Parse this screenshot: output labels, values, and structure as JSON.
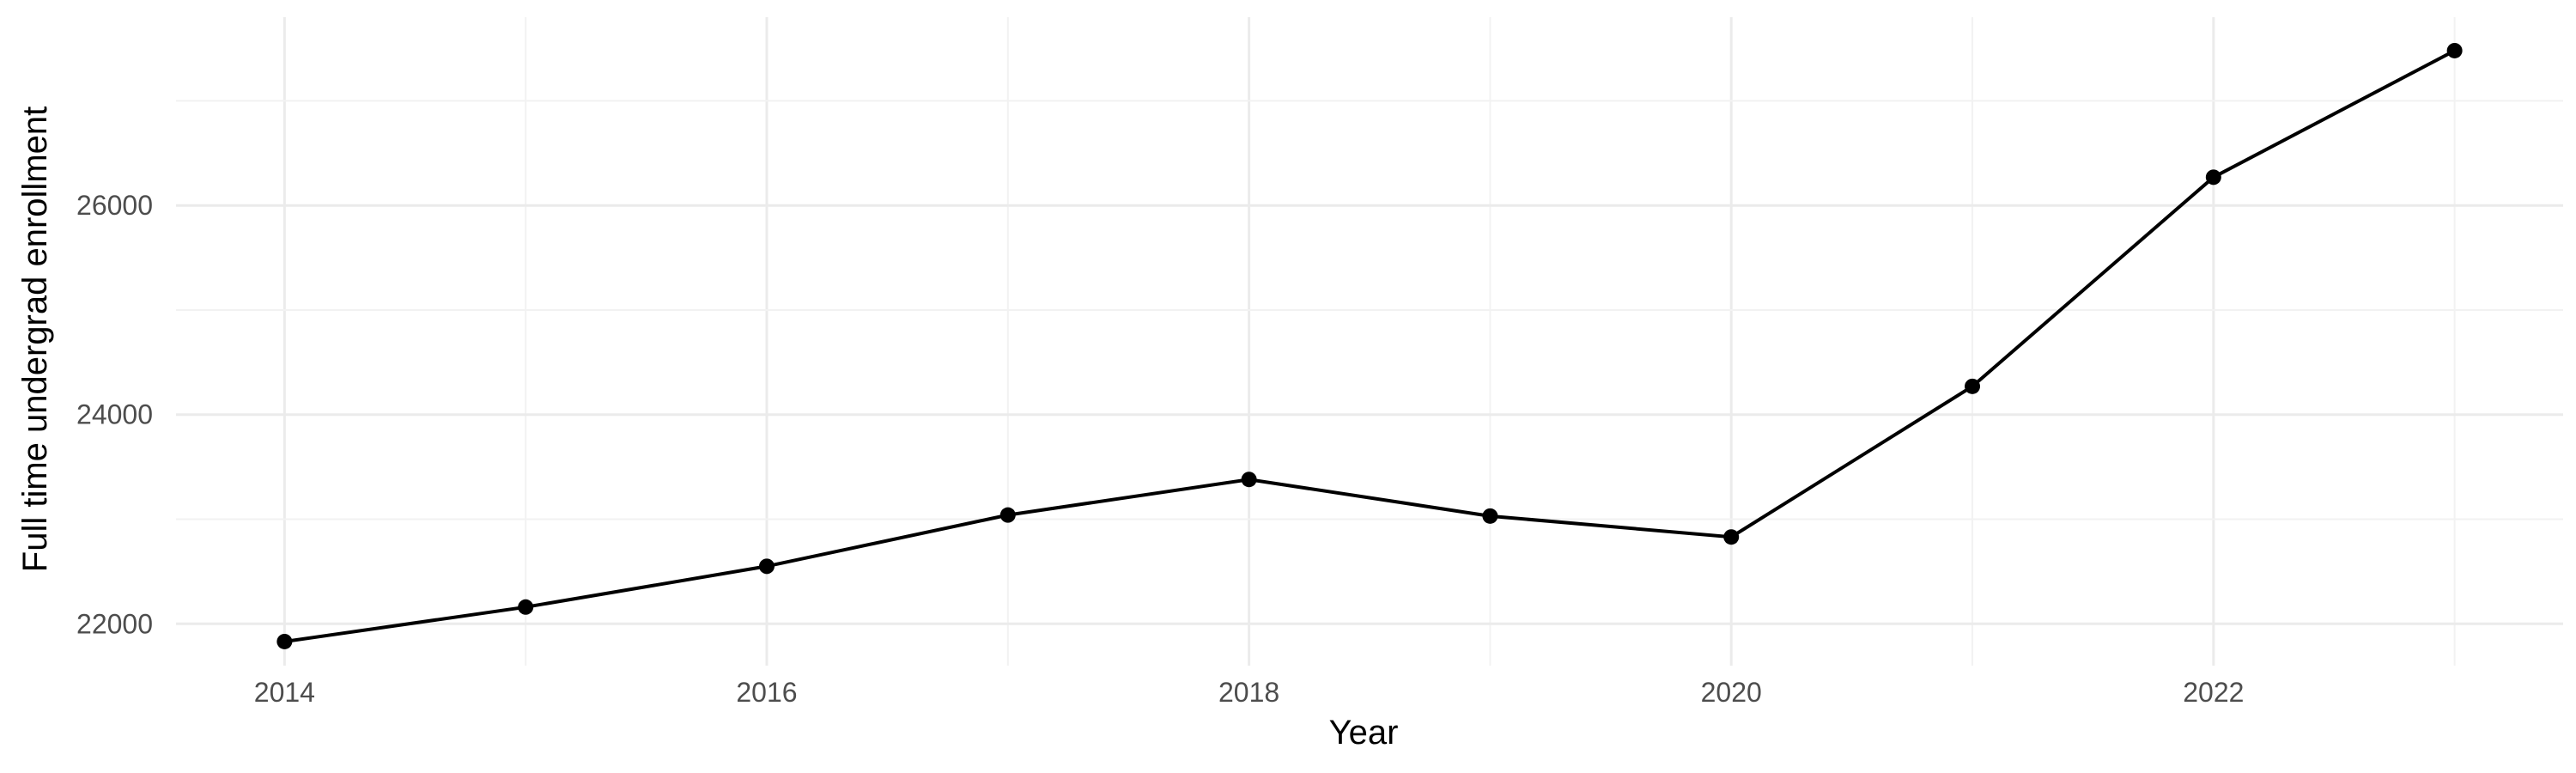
{
  "chart_data": {
    "type": "line",
    "title": "",
    "xlabel": "Year",
    "ylabel": "Full time undergrad enrollment",
    "x": [
      2014,
      2015,
      2016,
      2017,
      2018,
      2019,
      2020,
      2021,
      2022,
      2023
    ],
    "series": [
      {
        "values": [
          21830,
          22160,
          22550,
          23040,
          23380,
          23030,
          22830,
          24270,
          26270,
          27480
        ]
      }
    ],
    "xlim": [
      2013.55,
      2023.45
    ],
    "ylim": [
      21600,
      27800
    ],
    "x_ticks": [
      "2014",
      "2016",
      "2018",
      "2020",
      "2022"
    ],
    "y_ticks": [
      "22000",
      "24000",
      "26000"
    ],
    "grid": true,
    "legend": "none",
    "colors": {
      "line": "#000000",
      "point": "#000000",
      "grid": "#ebebeb",
      "background": "#ffffff"
    }
  }
}
